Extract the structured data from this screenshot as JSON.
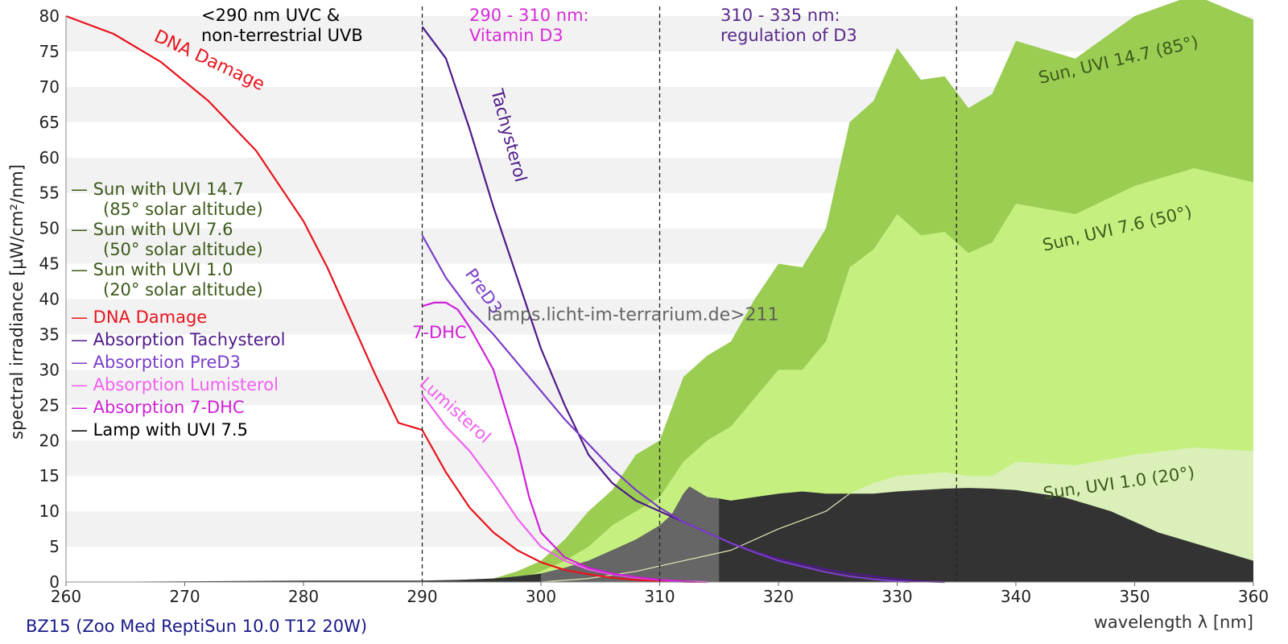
{
  "chart_data": {
    "type": "area",
    "caption": "BZ15 (Zoo Med ReptiSun 10.0 T12 20W)",
    "watermark": "lamps.licht-im-terrarium.de>211",
    "xlabel": "wavelength λ [nm]",
    "ylabel": "spectral irradiance [µW/cm²/nm]",
    "xlim": [
      260,
      360
    ],
    "ylim": [
      0,
      80
    ],
    "xticks": [
      260,
      270,
      280,
      290,
      300,
      310,
      320,
      330,
      340,
      350,
      360
    ],
    "yticks": [
      0,
      5,
      10,
      15,
      20,
      25,
      30,
      35,
      40,
      45,
      50,
      55,
      60,
      65,
      70,
      75,
      80
    ],
    "grid": "horizontal bands",
    "legend_position": "left",
    "legend": [
      {
        "text": "— Sun with UVI 14.7",
        "text2": "(85° solar altitude)",
        "color": "#3d5a1a"
      },
      {
        "text": "— Sun with UVI 7.6",
        "text2": "(50° solar altitude)",
        "color": "#3d5a1a"
      },
      {
        "text": "— Sun with UVI 1.0",
        "text2": "(20° solar altitude)",
        "color": "#3d5a1a"
      },
      {
        "text": "— DNA Damage",
        "color": "#e8141e"
      },
      {
        "text": "— Absorption Tachysterol",
        "color": "#4f1a8a"
      },
      {
        "text": "— Absorption PreD3",
        "color": "#7a3cc8"
      },
      {
        "text": "— Absorption Lumisterol",
        "color": "#f060f0"
      },
      {
        "text": "— Absorption 7-DHC",
        "color": "#d020d8"
      },
      {
        "text": "— Lamp with UVI 7.5",
        "color": "#000000"
      }
    ],
    "regions": [
      {
        "x": 290,
        "label1": "<290 nm UVC &",
        "label2": "non-terrestrial UVB",
        "color": "#000000"
      },
      {
        "x": 310,
        "label1": "290 - 310 nm:",
        "label2": "Vitamin D3",
        "color": "#d82ad8"
      },
      {
        "x": 335,
        "label1": "310 - 335 nm:",
        "label2": "regulation of D3",
        "color": "#5a2a8a"
      }
    ],
    "series_labels": [
      {
        "text": "DNA Damage",
        "color": "#e8141e"
      },
      {
        "text": "Tachysterol",
        "color": "#4f1a8a"
      },
      {
        "text": "PreD3",
        "color": "#7a3cc8"
      },
      {
        "text": "7-DHC",
        "color": "#d020d8"
      },
      {
        "text": "Lumisterol",
        "color": "#f060f0"
      },
      {
        "text": "Sun, UVI 14.7 (85°)",
        "color": "#3d5a1a"
      },
      {
        "text": "Sun, UVI 7.6 (50°)",
        "color": "#3d5a1a"
      },
      {
        "text": "Sun, UVI 1.0 (20°)",
        "color": "#3d5a1a"
      }
    ],
    "series": [
      {
        "key": "sun147",
        "kind": "area",
        "color": "#9acd52",
        "x": [
          293,
          296,
          298,
          300,
          302,
          304,
          306,
          308,
          310,
          312,
          314,
          316,
          318,
          320,
          322,
          324,
          326,
          328,
          330,
          332,
          334,
          336,
          338,
          340,
          345,
          350,
          355,
          360
        ],
        "y": [
          0,
          0.5,
          1.5,
          3,
          6,
          10,
          13,
          18,
          20,
          29,
          32,
          34,
          40,
          45,
          44.5,
          50,
          65,
          68,
          75.5,
          71,
          71.5,
          67,
          69,
          76.5,
          74,
          80,
          83,
          79.5
        ]
      },
      {
        "key": "sun76",
        "kind": "area",
        "color": "#c5f080",
        "x": [
          296,
          298,
          300,
          302,
          304,
          306,
          308,
          310,
          312,
          314,
          316,
          318,
          320,
          322,
          324,
          326,
          328,
          330,
          332,
          334,
          336,
          338,
          340,
          345,
          350,
          355,
          360
        ],
        "y": [
          0,
          0.5,
          1.5,
          3,
          5,
          8,
          10,
          12,
          17,
          20,
          22,
          26,
          30,
          30,
          34,
          44.5,
          47,
          52,
          49,
          49.5,
          46.5,
          48,
          53.5,
          52,
          56,
          58.5,
          56.5
        ]
      },
      {
        "key": "sun10",
        "kind": "area",
        "color": "#daf0b8",
        "x": [
          300,
          304,
          308,
          312,
          316,
          320,
          324,
          326,
          328,
          330,
          334,
          336,
          338,
          340,
          345,
          350,
          355,
          360
        ],
        "y": [
          0,
          0.5,
          1.5,
          3,
          4.5,
          7.5,
          10,
          12.5,
          14,
          15,
          15.5,
          15,
          15,
          17,
          16.5,
          18,
          19,
          18.5
        ]
      },
      {
        "key": "lamp",
        "kind": "area",
        "color": "#333333",
        "x": [
          260,
          280,
          290,
          293,
          296,
          298,
          300,
          302,
          304,
          306,
          308,
          310,
          311,
          312,
          312.5,
          313,
          314,
          315,
          316,
          318,
          320,
          322,
          324,
          326,
          328,
          330,
          332,
          334,
          336,
          338,
          340,
          342,
          344,
          346,
          348,
          350,
          352,
          354,
          356,
          358,
          360
        ],
        "y": [
          0,
          0.2,
          0.2,
          0.3,
          0.5,
          0.8,
          1.2,
          2,
          3,
          4.5,
          6,
          8,
          9.5,
          12.5,
          13.5,
          13,
          12,
          11.8,
          11.5,
          12,
          12.5,
          12.8,
          12.5,
          12.5,
          12.5,
          12.8,
          13,
          13.2,
          13.3,
          13.2,
          13,
          12.5,
          12,
          11,
          10,
          8.5,
          7,
          6,
          5,
          4,
          3
        ]
      },
      {
        "key": "sun10line",
        "kind": "line",
        "color": "#e8e8b8",
        "x": [
          300,
          304,
          308,
          312,
          316,
          320,
          324,
          326
        ],
        "y": [
          0,
          0.5,
          1.5,
          3,
          4.5,
          7.5,
          10,
          12.5
        ]
      },
      {
        "key": "dna",
        "kind": "line",
        "color": "#e8141e",
        "x": [
          260,
          264,
          268,
          272,
          276,
          280,
          282,
          284,
          286,
          288,
          290,
          292,
          294,
          296,
          298,
          300,
          302,
          304,
          306,
          308,
          310,
          312,
          314
        ],
        "y": [
          80,
          77.5,
          73.5,
          68,
          61,
          51,
          44.5,
          37,
          29.5,
          22.5,
          21.5,
          15.5,
          10.5,
          7,
          4.5,
          2.8,
          1.7,
          1.1,
          0.6,
          0.3,
          0.15,
          0.05,
          0
        ]
      },
      {
        "key": "tachy",
        "kind": "line",
        "color": "#4f1a8a",
        "x": [
          290,
          292,
          294,
          296,
          298,
          300,
          302,
          304,
          306,
          308,
          310,
          312,
          314,
          316,
          318,
          320,
          322,
          324,
          326,
          328,
          330,
          332,
          334
        ],
        "y": [
          78.5,
          74,
          64,
          53,
          43,
          33,
          25,
          18,
          14,
          11.5,
          10,
          8.5,
          7,
          5.5,
          4.3,
          3.3,
          2.5,
          1.8,
          1.2,
          0.8,
          0.4,
          0.1,
          0
        ]
      },
      {
        "key": "pred3",
        "kind": "line",
        "color": "#7a3cc8",
        "x": [
          290,
          292,
          294,
          296,
          298,
          300,
          302,
          304,
          306,
          308,
          310,
          312,
          314,
          316,
          318,
          320,
          322,
          324,
          326,
          328,
          330,
          331
        ],
        "y": [
          49,
          43,
          38.5,
          35,
          31,
          27,
          23,
          19.5,
          16,
          13,
          10.5,
          8.5,
          7,
          5.5,
          4.2,
          3,
          2.2,
          1.4,
          0.8,
          0.4,
          0.1,
          0
        ]
      },
      {
        "key": "lumi",
        "kind": "line",
        "color": "#f060f0",
        "x": [
          290,
          292,
          294,
          296,
          298,
          300,
          302,
          304,
          306,
          308,
          310,
          312,
          314
        ],
        "y": [
          26.5,
          22,
          18.5,
          14,
          9,
          5,
          3,
          1.8,
          1.1,
          0.6,
          0.3,
          0.1,
          0
        ]
      },
      {
        "key": "dhc",
        "kind": "line",
        "color": "#d020d8",
        "x": [
          290,
          291,
          292,
          293,
          294,
          296,
          298,
          299,
          300,
          302,
          304,
          306,
          308,
          310,
          312,
          313
        ],
        "y": [
          39,
          39.5,
          39.5,
          38.5,
          36,
          30,
          19,
          12,
          7,
          3.5,
          2,
          1.2,
          0.7,
          0.3,
          0.1,
          0
        ]
      }
    ]
  }
}
